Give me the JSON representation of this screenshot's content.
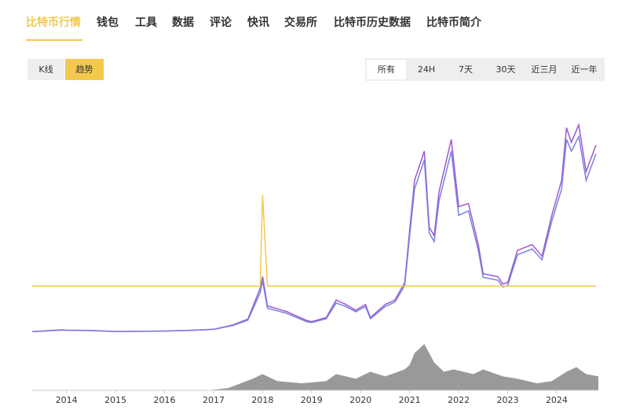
{
  "nav": {
    "tabs": [
      "比特币行情",
      "钱包",
      "工具",
      "数据",
      "评论",
      "快讯",
      "交易所",
      "比特币历史数据",
      "比特币简介"
    ],
    "active": 0
  },
  "view_buttons": {
    "items": [
      "K线",
      "趋势"
    ],
    "active": 1
  },
  "range_buttons": {
    "items": [
      "所有",
      "24H",
      "7天",
      "30天",
      "近三月",
      "近一年"
    ],
    "active": 0
  },
  "chart_data": [
    {
      "type": "line",
      "x": [
        2013.3,
        2013.9,
        2014.0,
        2014.5,
        2015.0,
        2016.0,
        2016.5,
        2017.0,
        2017.4,
        2017.7,
        2017.95,
        2018.0,
        2018.1,
        2018.3,
        2018.5,
        2018.9,
        2019.0,
        2019.3,
        2019.5,
        2019.7,
        2019.9,
        2020.1,
        2020.2,
        2020.5,
        2020.7,
        2020.9,
        2021.0,
        2021.1,
        2021.3,
        2021.4,
        2021.5,
        2021.6,
        2021.85,
        2022.0,
        2022.2,
        2022.4,
        2022.5,
        2022.8,
        2022.9,
        2023.0,
        2023.2,
        2023.5,
        2023.7,
        2023.9,
        2024.1,
        2024.2,
        2024.3,
        2024.45,
        2024.6,
        2024.8
      ],
      "series": [
        {
          "color": "#9b59d0",
          "values": [
            200,
            800,
            700,
            600,
            250,
            400,
            650,
            1000,
            2500,
            4500,
            15000,
            19000,
            9000,
            8000,
            7000,
            4000,
            3600,
            5000,
            11000,
            9500,
            7500,
            9500,
            5000,
            9500,
            11000,
            17000,
            35000,
            52000,
            62000,
            36000,
            33000,
            48000,
            66000,
            43000,
            44000,
            30000,
            20000,
            19000,
            16500,
            17000,
            28000,
            30000,
            26000,
            40000,
            52000,
            70000,
            65000,
            71000,
            55000,
            64000
          ]
        },
        {
          "color": "#7b7fe0",
          "values": [
            150,
            700,
            650,
            550,
            220,
            380,
            600,
            950,
            2300,
            4100,
            13500,
            17500,
            8200,
            7300,
            6400,
            3600,
            3300,
            4600,
            10000,
            8800,
            7000,
            8800,
            4600,
            8800,
            10300,
            16000,
            33000,
            49000,
            59000,
            34000,
            31000,
            45000,
            62000,
            40000,
            41500,
            28000,
            18800,
            17800,
            15500,
            16000,
            26500,
            28500,
            24800,
            38000,
            49000,
            66000,
            62000,
            67000,
            52000,
            61000
          ]
        },
        {
          "color": "#f2c94c",
          "values": [
            15800,
            15800,
            15800,
            15800,
            15800,
            15800,
            15800,
            15800,
            15800,
            15800,
            15800,
            47000,
            15800,
            15800,
            15800,
            15800,
            15800,
            15800,
            15800,
            15800,
            15800,
            15800,
            15800,
            15800,
            15800,
            15800,
            15800,
            15800,
            15800,
            15800,
            15800,
            15800,
            15800,
            15800,
            15800,
            15800,
            15800,
            15800,
            15800,
            15800,
            15800,
            15800,
            15800,
            15800,
            15800,
            15800,
            15800,
            15800,
            15800,
            15800
          ]
        }
      ],
      "xlim": [
        2013.3,
        2024.85
      ],
      "ylim": [
        0,
        75000
      ]
    },
    {
      "type": "area",
      "color": "#999999",
      "x": [
        2013.3,
        2016.9,
        2017.3,
        2017.8,
        2018.0,
        2018.3,
        2018.8,
        2019.3,
        2019.5,
        2019.9,
        2020.2,
        2020.5,
        2020.9,
        2021.0,
        2021.1,
        2021.3,
        2021.5,
        2021.7,
        2021.9,
        2022.3,
        2022.5,
        2022.9,
        2023.2,
        2023.6,
        2023.9,
        2024.2,
        2024.4,
        2024.6,
        2024.85
      ],
      "values": [
        0,
        0,
        5,
        25,
        35,
        20,
        15,
        20,
        35,
        25,
        40,
        30,
        45,
        55,
        80,
        100,
        60,
        40,
        45,
        35,
        45,
        30,
        25,
        15,
        20,
        40,
        50,
        35,
        30
      ],
      "xlim": [
        2013.3,
        2024.85
      ],
      "ylim": [
        0,
        100
      ],
      "xticks": [
        2014,
        2015,
        2016,
        2017,
        2018,
        2019,
        2020,
        2021,
        2022,
        2023,
        2024
      ]
    }
  ]
}
